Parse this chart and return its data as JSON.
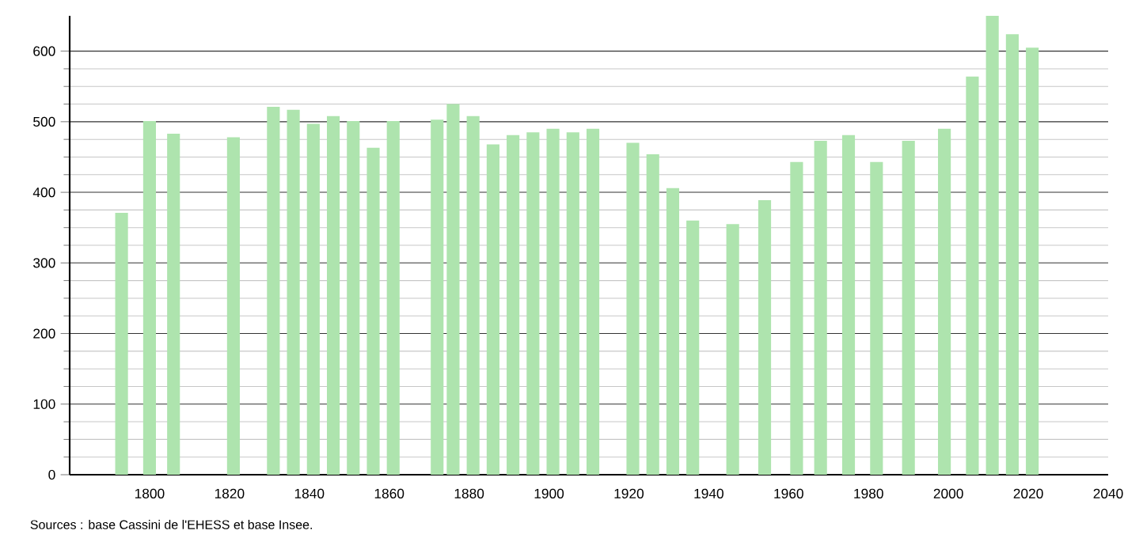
{
  "chart_data": {
    "type": "bar",
    "color": "#aee4ae",
    "x": [
      1793,
      1800,
      1806,
      1821,
      1831,
      1836,
      1841,
      1846,
      1851,
      1856,
      1861,
      1872,
      1876,
      1881,
      1886,
      1891,
      1896,
      1901,
      1906,
      1911,
      1921,
      1926,
      1931,
      1936,
      1946,
      1954,
      1962,
      1968,
      1975,
      1982,
      1990,
      1999,
      2006,
      2011,
      2016,
      2021
    ],
    "values": [
      371,
      501,
      483,
      478,
      521,
      517,
      497,
      508,
      501,
      463,
      501,
      503,
      525,
      508,
      468,
      481,
      485,
      490,
      485,
      490,
      470,
      454,
      406,
      360,
      355,
      389,
      443,
      473,
      481,
      443,
      473,
      490,
      564,
      650,
      624,
      605
    ],
    "xlim": [
      1780,
      2040
    ],
    "ylim": [
      0,
      650
    ],
    "xticks": [
      1800,
      1820,
      1840,
      1860,
      1880,
      1900,
      1920,
      1940,
      1960,
      1980,
      2000,
      2020,
      2040
    ],
    "yticks": [
      0,
      100,
      200,
      300,
      400,
      500,
      600
    ],
    "grid": "y",
    "annotations": [
      "Sources : base Cassini de l'EHESS et base Insee."
    ]
  }
}
